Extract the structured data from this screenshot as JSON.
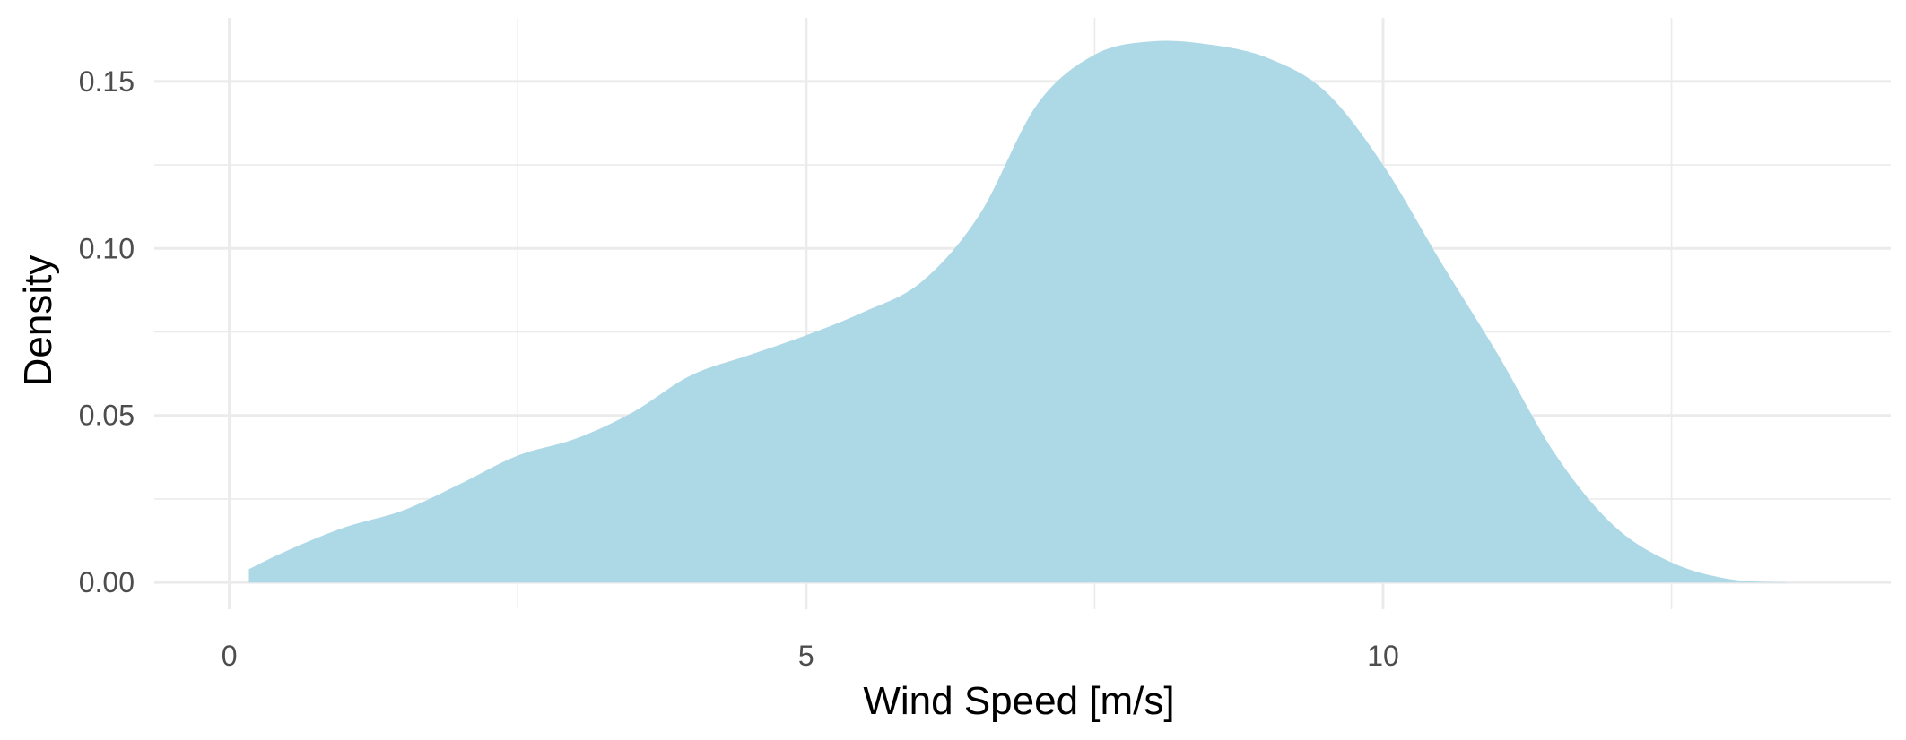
{
  "chart_data": {
    "type": "area",
    "xlabel": "Wind Speed [m/s]",
    "ylabel": "Density",
    "xlim": [
      -0.65,
      14.4
    ],
    "ylim": [
      -0.008,
      0.169
    ],
    "x_ticks": [
      0,
      5,
      10
    ],
    "x_tick_labels": [
      "0",
      "5",
      "10"
    ],
    "x_minor_ticks": [
      2.5,
      7.5,
      12.5
    ],
    "y_ticks": [
      0.0,
      0.05,
      0.1,
      0.15
    ],
    "y_tick_labels": [
      "0.00",
      "0.05",
      "0.10",
      "0.15"
    ],
    "y_minor_ticks": [
      0.025,
      0.075,
      0.125
    ],
    "grid": true,
    "legend": "none",
    "fill_color": "#add8e6",
    "series": [
      {
        "x": [
          0.17,
          0.5,
          1.0,
          1.5,
          2.0,
          2.5,
          3.0,
          3.5,
          4.0,
          4.5,
          5.0,
          5.5,
          6.0,
          6.5,
          7.0,
          7.5,
          8.0,
          8.5,
          9.0,
          9.5,
          10.0,
          10.5,
          11.0,
          11.5,
          12.0,
          12.5,
          13.0,
          13.5
        ],
        "values": [
          0.004,
          0.0095,
          0.0165,
          0.0215,
          0.0295,
          0.038,
          0.043,
          0.051,
          0.062,
          0.068,
          0.074,
          0.081,
          0.09,
          0.11,
          0.143,
          0.158,
          0.162,
          0.161,
          0.157,
          0.147,
          0.125,
          0.096,
          0.068,
          0.038,
          0.017,
          0.006,
          0.001,
          0.0
        ]
      }
    ]
  }
}
